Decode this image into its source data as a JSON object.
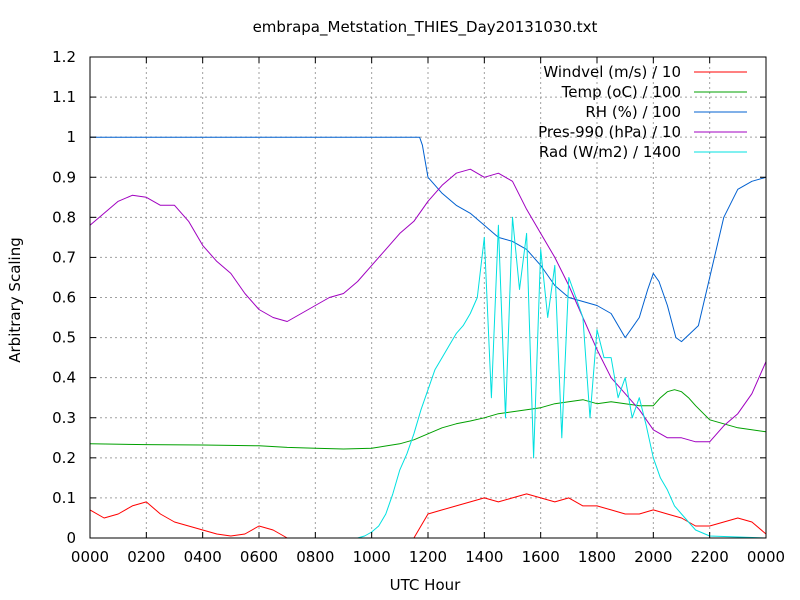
{
  "chart_data": {
    "type": "line",
    "title": "embrapa_Metstation_THIES_Day20131030.txt",
    "xlabel": "UTC Hour",
    "ylabel": "Arbitrary Scaling",
    "xlim": [
      0,
      24
    ],
    "ylim": [
      0,
      1.2
    ],
    "x_ticks": [
      "0000",
      "0200",
      "0400",
      "0600",
      "0800",
      "1000",
      "1200",
      "1400",
      "1600",
      "1800",
      "2000",
      "2200",
      "0000"
    ],
    "y_ticks": [
      "0",
      "0.1",
      "0.2",
      "0.3",
      "0.4",
      "0.5",
      "0.6",
      "0.7",
      "0.8",
      "0.9",
      "1",
      "1.1",
      "1.2"
    ],
    "grid": true,
    "legend_position": "top-right",
    "series": [
      {
        "name": "Windvel (m/s) / 10",
        "color": "#ff0000",
        "x": [
          0,
          0.5,
          1,
          1.5,
          2,
          2.5,
          3,
          3.5,
          4,
          4.5,
          5,
          5.5,
          6,
          6.5,
          7,
          8,
          9,
          10,
          11,
          11.5,
          12,
          12.5,
          13,
          13.5,
          14,
          14.5,
          15,
          15.5,
          16,
          16.5,
          17,
          17.5,
          18,
          18.5,
          19,
          19.5,
          20,
          20.5,
          21,
          21.5,
          22,
          22.5,
          23,
          23.5,
          24
        ],
        "y": [
          0.07,
          0.05,
          0.06,
          0.08,
          0.09,
          0.06,
          0.04,
          0.03,
          0.02,
          0.01,
          0.005,
          0.01,
          0.03,
          0.02,
          0,
          0,
          0,
          0,
          0,
          0,
          0.06,
          0.07,
          0.08,
          0.09,
          0.1,
          0.09,
          0.1,
          0.11,
          0.1,
          0.09,
          0.1,
          0.08,
          0.08,
          0.07,
          0.06,
          0.06,
          0.07,
          0.06,
          0.05,
          0.03,
          0.03,
          0.04,
          0.05,
          0.04,
          0.01
        ]
      },
      {
        "name": "Temp (oC) / 100",
        "color": "#00a000",
        "x": [
          0,
          2,
          4,
          6,
          7,
          8,
          9,
          10,
          11,
          11.5,
          12,
          12.5,
          13,
          13.5,
          14,
          14.5,
          15,
          15.5,
          16,
          16.5,
          17,
          17.5,
          18,
          18.5,
          19,
          19.5,
          20,
          20.25,
          20.5,
          20.75,
          21,
          21.25,
          21.5,
          22,
          23,
          24
        ],
        "y": [
          0.235,
          0.233,
          0.232,
          0.23,
          0.226,
          0.224,
          0.222,
          0.224,
          0.235,
          0.245,
          0.26,
          0.275,
          0.285,
          0.292,
          0.3,
          0.31,
          0.315,
          0.32,
          0.325,
          0.335,
          0.34,
          0.345,
          0.335,
          0.34,
          0.335,
          0.33,
          0.33,
          0.35,
          0.365,
          0.37,
          0.365,
          0.35,
          0.33,
          0.295,
          0.275,
          0.265
        ]
      },
      {
        "name": "RH (%) / 100",
        "color": "#0060d0",
        "x": [
          0,
          11.7,
          11.8,
          12,
          12.5,
          13,
          13.5,
          14,
          14.5,
          15,
          15.5,
          16,
          16.5,
          17,
          17.5,
          18,
          18.5,
          19,
          19.5,
          19.8,
          20,
          20.2,
          20.5,
          20.8,
          21,
          21.3,
          21.6,
          22,
          22.5,
          23,
          23.5,
          24
        ],
        "y": [
          1,
          1,
          0.98,
          0.9,
          0.86,
          0.83,
          0.81,
          0.78,
          0.75,
          0.74,
          0.72,
          0.68,
          0.63,
          0.6,
          0.59,
          0.58,
          0.56,
          0.5,
          0.55,
          0.62,
          0.66,
          0.64,
          0.58,
          0.5,
          0.49,
          0.51,
          0.53,
          0.65,
          0.8,
          0.87,
          0.89,
          0.9
        ]
      },
      {
        "name": "Pres-990 (hPa) / 10",
        "color": "#a000c0",
        "x": [
          0,
          0.5,
          1,
          1.5,
          2,
          2.5,
          3,
          3.5,
          4,
          4.5,
          5,
          5.5,
          6,
          6.5,
          7,
          7.5,
          8,
          8.5,
          9,
          9.5,
          10,
          10.5,
          11,
          11.5,
          12,
          12.5,
          13,
          13.5,
          14,
          14.5,
          15,
          15.5,
          16,
          16.5,
          17,
          17.5,
          18,
          18.5,
          19,
          19.5,
          20,
          20.5,
          21,
          21.5,
          22,
          22.5,
          23,
          23.5,
          24
        ],
        "y": [
          0.78,
          0.81,
          0.84,
          0.855,
          0.85,
          0.83,
          0.83,
          0.79,
          0.73,
          0.69,
          0.66,
          0.61,
          0.57,
          0.55,
          0.54,
          0.56,
          0.58,
          0.6,
          0.61,
          0.64,
          0.68,
          0.72,
          0.76,
          0.79,
          0.84,
          0.88,
          0.91,
          0.92,
          0.9,
          0.91,
          0.89,
          0.82,
          0.76,
          0.7,
          0.63,
          0.55,
          0.47,
          0.4,
          0.36,
          0.32,
          0.27,
          0.25,
          0.25,
          0.24,
          0.24,
          0.28,
          0.31,
          0.36,
          0.44
        ]
      },
      {
        "name": "Rad (W/m2) / 1400",
        "color": "#00e0e0",
        "x": [
          0,
          9.5,
          9.75,
          10,
          10.25,
          10.5,
          10.75,
          11,
          11.25,
          11.5,
          11.75,
          12,
          12.25,
          12.5,
          12.75,
          13,
          13.25,
          13.5,
          13.75,
          14,
          14.25,
          14.5,
          14.75,
          15,
          15.25,
          15.5,
          15.75,
          16,
          16.25,
          16.5,
          16.75,
          17,
          17.25,
          17.5,
          17.75,
          18,
          18.25,
          18.5,
          18.75,
          19,
          19.25,
          19.5,
          19.75,
          20,
          20.25,
          20.5,
          20.75,
          21,
          21.25,
          21.5,
          22,
          24
        ],
        "y": [
          0,
          0,
          0.005,
          0.015,
          0.03,
          0.06,
          0.11,
          0.17,
          0.21,
          0.26,
          0.32,
          0.37,
          0.42,
          0.45,
          0.48,
          0.51,
          0.53,
          0.56,
          0.6,
          0.75,
          0.35,
          0.78,
          0.3,
          0.8,
          0.62,
          0.76,
          0.2,
          0.72,
          0.55,
          0.68,
          0.25,
          0.65,
          0.6,
          0.55,
          0.3,
          0.52,
          0.45,
          0.45,
          0.35,
          0.4,
          0.3,
          0.35,
          0.28,
          0.2,
          0.15,
          0.12,
          0.08,
          0.06,
          0.04,
          0.02,
          0.005,
          0
        ]
      }
    ]
  }
}
